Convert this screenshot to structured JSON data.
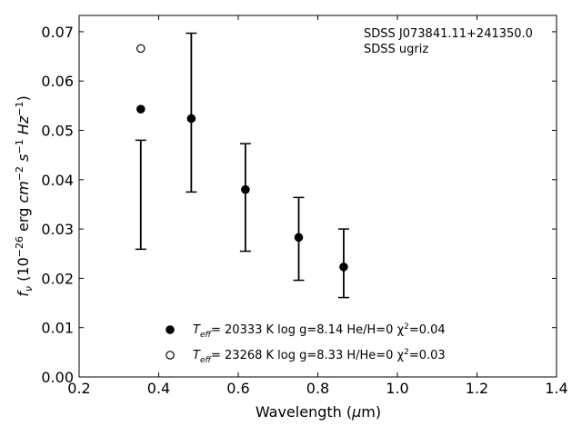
{
  "chart_data": {
    "type": "scatter",
    "title": "",
    "xlabel": "Wavelength (μm)",
    "ylabel": "f_ν (10^-26 erg cm^-2 s^-1 Hz^-1)",
    "xlim": [
      0.2,
      1.4
    ],
    "ylim": [
      0.0,
      0.0733
    ],
    "x_ticks": [
      0.2,
      0.4,
      0.6,
      0.8,
      1.0,
      1.2,
      1.4
    ],
    "x_tick_labels": [
      "0.2",
      "0.4",
      "0.6",
      "0.8",
      "1.0",
      "1.2",
      "1.4"
    ],
    "y_ticks": [
      0.0,
      0.01,
      0.02,
      0.03,
      0.04,
      0.05,
      0.06,
      0.07
    ],
    "y_tick_labels": [
      "0.00",
      "0.01",
      "0.02",
      "0.03",
      "0.04",
      "0.05",
      "0.06",
      "0.07"
    ],
    "grid": false,
    "annotations": [
      "SDSS J073841.11+241350.0",
      "SDSS ugriz"
    ],
    "observed": {
      "x": [
        0.355,
        0.482,
        0.618,
        0.752,
        0.865
      ],
      "y_low": [
        0.0259,
        0.0375,
        0.0255,
        0.0196,
        0.0161
      ],
      "y_high": [
        0.048,
        0.0697,
        0.0473,
        0.0364,
        0.03
      ]
    },
    "series": [
      {
        "label_parts": [
          "T",
          "eff",
          "= 20333 K  log g=8.14  He/H=0  χ",
          "2",
          "=0.04"
        ],
        "marker": "filled-circle",
        "x": [
          0.355,
          0.482,
          0.618,
          0.752,
          0.865
        ],
        "y": [
          0.0543,
          0.0524,
          0.038,
          0.0283,
          0.0223
        ]
      },
      {
        "label_parts": [
          "T",
          "eff",
          "= 23268 K  log g=8.33  H/He=0  χ",
          "2",
          "=0.03"
        ],
        "marker": "open-circle",
        "x": [
          0.355
        ],
        "y": [
          0.0666
        ]
      }
    ],
    "legend_position": "lower-center"
  }
}
